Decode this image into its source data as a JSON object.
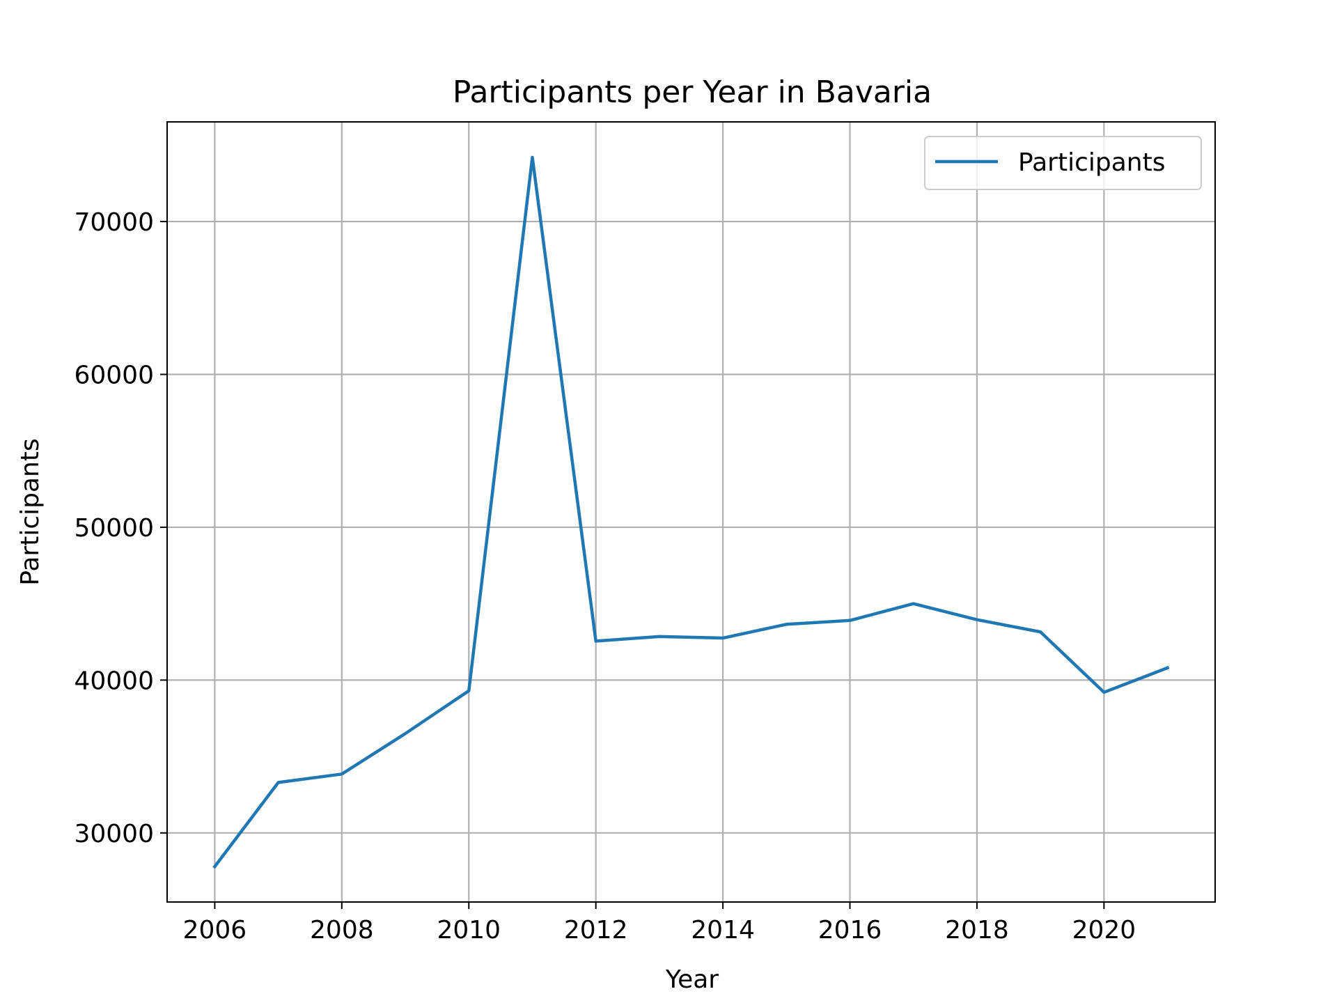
{
  "chart_data": {
    "type": "line",
    "title": "Participants per Year in Bavaria",
    "xlabel": "Year",
    "ylabel": "Participants",
    "x": [
      2006,
      2007,
      2008,
      2009,
      2010,
      2011,
      2012,
      2013,
      2014,
      2015,
      2016,
      2017,
      2018,
      2019,
      2020,
      2021
    ],
    "series": [
      {
        "name": "Participants",
        "color": "#1f77b4",
        "values": [
          27800,
          33300,
          33850,
          36500,
          39300,
          74200,
          42550,
          42850,
          42750,
          43650,
          43900,
          45000,
          43950,
          43150,
          39200,
          40800
        ]
      }
    ],
    "xlim": [
      2005.25,
      2021.75
    ],
    "ylim": [
      25480,
      76520
    ],
    "xticks": [
      2006,
      2008,
      2010,
      2012,
      2014,
      2016,
      2018,
      2020
    ],
    "yticks": [
      30000,
      40000,
      50000,
      60000,
      70000
    ],
    "grid": true,
    "legend_position": "top-right"
  }
}
